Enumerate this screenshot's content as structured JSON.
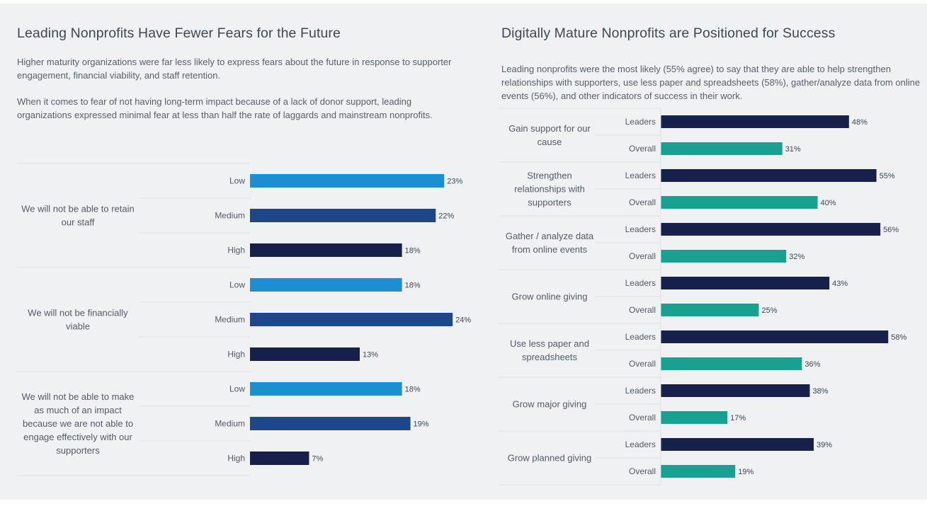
{
  "left": {
    "title": "Leading Nonprofits Have Fewer Fears for the Future",
    "para1": "Higher maturity organizations were far less likely to express fears about the future in response to supporter engagement, financial viability, and staff retention.",
    "para2": "When it comes to fear of not having long-term impact because of a lack of donor support, leading organizations expressed minimal fear at less than half the rate of laggards and mainstream nonprofits."
  },
  "right": {
    "title": "Digitally Mature Nonprofits are Positioned for Success",
    "para1": "Leading nonprofits were the most likely (55% agree) to say that they are able to help strengthen relationships with supporters, use less paper and spreadsheets (58%), gather/analyze data from online events (56%), and other indicators of success in their work."
  },
  "colors": {
    "low": "#1b8fd1",
    "medium": "#1d4789",
    "high": "#16204a",
    "leaders": "#16204a",
    "overall": "#18a190"
  },
  "chart_data": [
    {
      "type": "bar",
      "orientation": "horizontal",
      "groups": [
        {
          "label": "We will not be able to retain our staff",
          "rows": [
            {
              "name": "Low",
              "value": 23
            },
            {
              "name": "Medium",
              "value": 22
            },
            {
              "name": "High",
              "value": 18
            }
          ]
        },
        {
          "label": "We will not be financially viable",
          "rows": [
            {
              "name": "Low",
              "value": 18
            },
            {
              "name": "Medium",
              "value": 24
            },
            {
              "name": "High",
              "value": 13
            }
          ]
        },
        {
          "label": "We will not be able to make as much of an impact because we are not able to engage effectively with our supporters",
          "rows": [
            {
              "name": "Low",
              "value": 18
            },
            {
              "name": "Medium",
              "value": 19
            },
            {
              "name": "High",
              "value": 7
            }
          ]
        }
      ],
      "value_suffix": "%",
      "xlim": [
        0,
        26
      ]
    },
    {
      "type": "bar",
      "orientation": "horizontal",
      "groups": [
        {
          "label": "Gain support for our cause",
          "rows": [
            {
              "name": "Leaders",
              "value": 48
            },
            {
              "name": "Overall",
              "value": 31
            }
          ]
        },
        {
          "label": "Strengthen relationships with supporters",
          "rows": [
            {
              "name": "Leaders",
              "value": 55
            },
            {
              "name": "Overall",
              "value": 40
            }
          ]
        },
        {
          "label": "Gather / analyze data from online events",
          "rows": [
            {
              "name": "Leaders",
              "value": 56
            },
            {
              "name": "Overall",
              "value": 32
            }
          ]
        },
        {
          "label": "Grow online giving",
          "rows": [
            {
              "name": "Leaders",
              "value": 43
            },
            {
              "name": "Overall",
              "value": 25
            }
          ]
        },
        {
          "label": "Use less paper and spreadsheets",
          "rows": [
            {
              "name": "Leaders",
              "value": 58
            },
            {
              "name": "Overall",
              "value": 36
            }
          ]
        },
        {
          "label": "Grow major giving",
          "rows": [
            {
              "name": "Leaders",
              "value": 38
            },
            {
              "name": "Overall",
              "value": 17
            }
          ]
        },
        {
          "label": "Grow planned giving",
          "rows": [
            {
              "name": "Leaders",
              "value": 39
            },
            {
              "name": "Overall",
              "value": 19
            }
          ]
        }
      ],
      "value_suffix": "%",
      "xlim": [
        0,
        65
      ]
    }
  ]
}
